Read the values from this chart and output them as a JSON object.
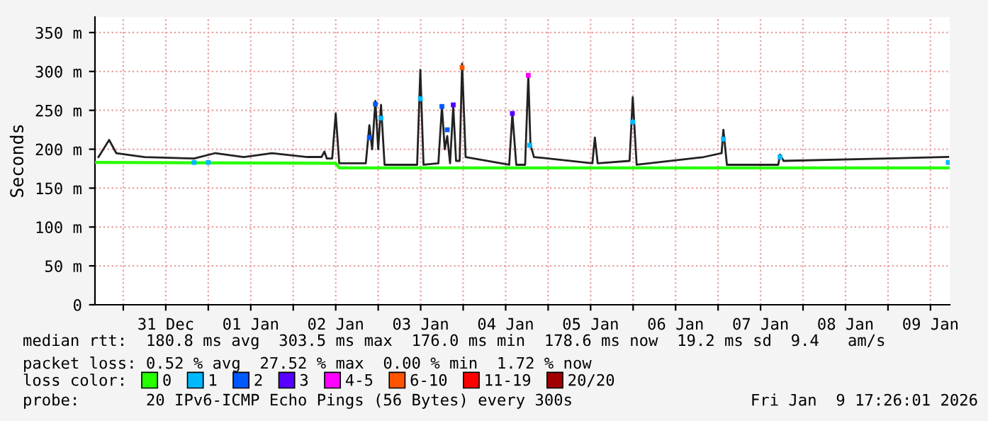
{
  "chart_data": {
    "type": "line",
    "ylabel": "Seconds",
    "xlim": [
      "2025-12-30T16:00",
      "2026-01-09T17:26"
    ],
    "xticks": [
      {
        "value": "2025-12-31T00:00",
        "label": null
      },
      {
        "value": "2025-12-31T12:00",
        "label": "31 Dec"
      },
      {
        "value": "2026-01-01T00:00",
        "label": null
      },
      {
        "value": "2026-01-01T12:00",
        "label": "01 Jan"
      },
      {
        "value": "2026-01-02T00:00",
        "label": null
      },
      {
        "value": "2026-01-02T12:00",
        "label": "02 Jan"
      },
      {
        "value": "2026-01-03T00:00",
        "label": null
      },
      {
        "value": "2026-01-03T12:00",
        "label": "03 Jan"
      },
      {
        "value": "2026-01-04T00:00",
        "label": null
      },
      {
        "value": "2026-01-04T12:00",
        "label": "04 Jan"
      },
      {
        "value": "2026-01-05T00:00",
        "label": null
      },
      {
        "value": "2026-01-05T12:00",
        "label": "05 Jan"
      },
      {
        "value": "2026-01-06T00:00",
        "label": null
      },
      {
        "value": "2026-01-06T12:00",
        "label": "06 Jan"
      },
      {
        "value": "2026-01-07T00:00",
        "label": null
      },
      {
        "value": "2026-01-07T12:00",
        "label": "07 Jan"
      },
      {
        "value": "2026-01-08T00:00",
        "label": null
      },
      {
        "value": "2026-01-08T12:00",
        "label": "08 Jan"
      },
      {
        "value": "2026-01-09T00:00",
        "label": null
      },
      {
        "value": "2026-01-09T12:00",
        "label": "09 Jan"
      }
    ],
    "ylim": [
      0,
      370
    ],
    "yticks": [
      0,
      {
        "value": 50,
        "label": "50 m"
      },
      {
        "value": 100,
        "label": "100 m"
      },
      {
        "value": 150,
        "label": "150 m"
      },
      {
        "value": 200,
        "label": "200 m"
      },
      {
        "value": 250,
        "label": "250 m"
      },
      {
        "value": 300,
        "label": "300 m"
      },
      {
        "value": 350,
        "label": "350 m"
      }
    ],
    "grid": true,
    "legend": "bottom",
    "legend_title": "loss color:",
    "series": [
      {
        "color": "#222222",
        "x": [
          "2025-12-30T17:00",
          "2025-12-30T20:00",
          "2025-12-30T22:00",
          "2025-12-31T06:00",
          "2025-12-31T20:00",
          "2026-01-01T02:00",
          "2026-01-01T10:00",
          "2026-01-01T18:00",
          "2026-01-02T04:00",
          "2026-01-02T08:00",
          "2026-01-02T08:48",
          "2026-01-02T09:30",
          "2026-01-02T11:00",
          "2026-01-02T12:00",
          "2026-01-02T13:00",
          "2026-01-02T20:30",
          "2026-01-02T21:30",
          "2026-01-02T22:18",
          "2026-01-02T23:12",
          "2026-01-03T00:00",
          "2026-01-03T00:48",
          "2026-01-03T01:48",
          "2026-01-03T11:00",
          "2026-01-03T11:54",
          "2026-01-03T12:48",
          "2026-01-03T17:00",
          "2026-01-03T18:00",
          "2026-01-03T18:48",
          "2026-01-03T19:30",
          "2026-01-03T20:18",
          "2026-01-03T21:12",
          "2026-01-03T22:00",
          "2026-01-03T23:00",
          "2026-01-03T23:42",
          "2026-01-04T00:42",
          "2026-01-04T13:00",
          "2026-01-04T13:54",
          "2026-01-04T15:00",
          "2026-01-04T17:30",
          "2026-01-04T18:24",
          "2026-01-04T19:00",
          "2026-01-04T20:00",
          "2026-01-05T12:30",
          "2026-01-05T13:12",
          "2026-01-05T14:00",
          "2026-01-05T23:00",
          "2026-01-05T23:54",
          "2026-01-06T01:00",
          "2026-01-06T20:00",
          "2026-01-07T01:00",
          "2026-01-07T01:30",
          "2026-01-07T02:30",
          "2026-01-07T17:00",
          "2026-01-07T17:30",
          "2026-01-07T18:30",
          "2026-01-09T17:00"
        ],
        "values": [
          190,
          212,
          195,
          190,
          188,
          195,
          190,
          195,
          190,
          190,
          197,
          188,
          188,
          246,
          182,
          182,
          231,
          200,
          262,
          200,
          257,
          180,
          180,
          302,
          180,
          182,
          255,
          200,
          217,
          182,
          255,
          185,
          185,
          310,
          190,
          180,
          246,
          180,
          180,
          295,
          206,
          190,
          182,
          215,
          182,
          185,
          267,
          180,
          190,
          195,
          225,
          180,
          180,
          193,
          185,
          190
        ]
      },
      {
        "name": "0",
        "color": "#26ff00",
        "x": [
          "2025-12-30T16:00",
          "2026-01-02T12:00",
          "2026-01-02T13:00",
          "2026-01-09T17:26"
        ],
        "values": [
          183,
          182,
          176,
          176
        ]
      },
      {
        "type": "scatter",
        "name": "1",
        "color": "#00b8ff",
        "x": [
          "2025-12-31T20:00",
          "2026-01-01T00:00",
          "2026-01-03T00:48",
          "2026-01-03T11:54",
          "2026-01-04T18:48",
          "2026-01-05T23:54",
          "2026-01-07T01:30",
          "2026-01-07T17:30",
          "2026-01-09T17:00"
        ],
        "values": [
          183,
          183,
          240,
          265,
          205,
          235,
          213,
          190,
          183
        ]
      },
      {
        "type": "scatter",
        "name": "2",
        "color": "#0059ff",
        "x": [
          "2026-01-02T21:30",
          "2026-01-02T23:12",
          "2026-01-03T18:00",
          "2026-01-03T19:30"
        ],
        "values": [
          215,
          258,
          255,
          225
        ]
      },
      {
        "type": "scatter",
        "name": "3",
        "color": "#5700ff",
        "x": [
          "2026-01-03T21:12",
          "2026-01-04T13:54"
        ],
        "values": [
          257,
          246
        ]
      },
      {
        "type": "scatter",
        "name": "4-5",
        "color": "#ff00ff",
        "x": [
          "2026-01-04T18:24"
        ],
        "values": [
          295
        ]
      },
      {
        "type": "scatter",
        "name": "6-10",
        "color": "#ff5500",
        "x": [
          "2026-01-03T23:42"
        ],
        "values": [
          305
        ]
      },
      {
        "type": "scatter",
        "name": "11-19",
        "color": "#ff0000"
      },
      {
        "type": "scatter",
        "name": "20/20",
        "color": "#a10000"
      }
    ],
    "annotations": [
      "median rtt:  180.8 ms avg  303.5 ms max  176.0 ms min  178.6 ms now  19.2 ms sd  9.4   am/s",
      "packet loss: 0.52 % avg  27.52 % max  0.00 % min  1.72 % now",
      "probe:       20 IPv6-ICMP Echo Pings (56 Bytes) every 300s",
      "Fri Jan  9 17:26:01 2026"
    ]
  }
}
